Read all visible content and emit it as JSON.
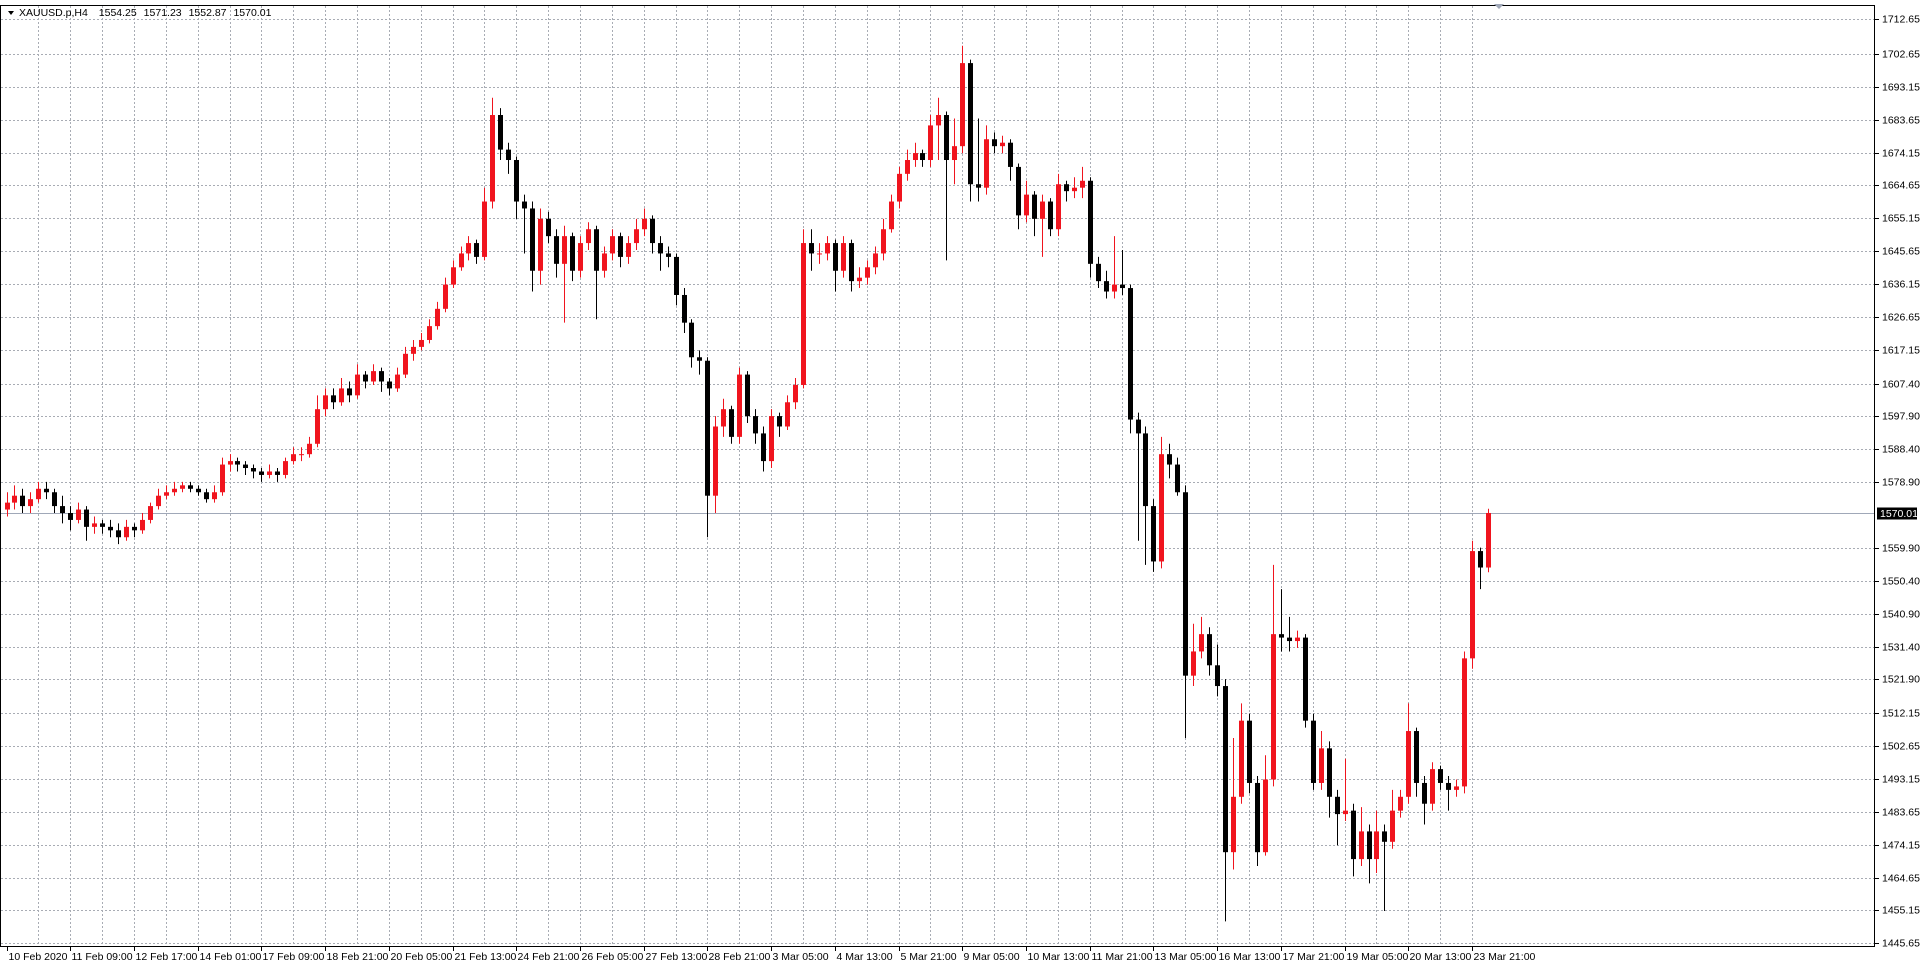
{
  "chart_data": {
    "type": "candlestick",
    "title": "XAUUSD.p,H4",
    "up_color": "#f0141e",
    "down_color": "#000000",
    "grid": true,
    "price_line": 1570.01,
    "ylim": [
      1444.6,
      1716.5
    ],
    "yticks": [
      1712.65,
      1702.65,
      1693.15,
      1683.65,
      1674.15,
      1664.65,
      1655.15,
      1645.65,
      1636.15,
      1626.65,
      1617.15,
      {
        "value": 1607.4,
        "label": "1607.40"
      },
      {
        "value": 1597.9,
        "label": "1597.90"
      },
      {
        "value": 1588.4,
        "label": "1588.40"
      },
      {
        "value": 1578.9,
        "label": "1578.90"
      },
      {
        "value": 1559.9,
        "label": "1559.90"
      },
      {
        "value": 1550.4,
        "label": "1550.40"
      },
      {
        "value": 1540.9,
        "label": "1540.90"
      },
      {
        "value": 1531.4,
        "label": "1531.40"
      },
      {
        "value": 1521.9,
        "label": "1521.90"
      },
      1512.15,
      1502.65,
      1493.15,
      1483.65,
      1474.15,
      1464.65,
      1455.15,
      1445.65
    ],
    "categories": [
      "10 Feb 2020",
      null,
      null,
      null,
      null,
      null,
      null,
      null,
      "11 Feb 09:00",
      null,
      null,
      null,
      null,
      null,
      null,
      null,
      "12 Feb 17:00",
      null,
      null,
      null,
      null,
      null,
      null,
      null,
      "14 Feb 01:00",
      null,
      null,
      null,
      null,
      null,
      null,
      null,
      "17 Feb 09:00",
      null,
      null,
      null,
      null,
      null,
      null,
      null,
      "18 Feb 21:00",
      null,
      null,
      null,
      null,
      null,
      null,
      null,
      "20 Feb 05:00",
      null,
      null,
      null,
      null,
      null,
      null,
      null,
      "21 Feb 13:00",
      null,
      null,
      null,
      null,
      null,
      null,
      null,
      "24 Feb 21:00",
      null,
      null,
      null,
      null,
      null,
      null,
      null,
      "26 Feb 05:00",
      null,
      null,
      null,
      null,
      null,
      null,
      null,
      "27 Feb 13:00",
      null,
      null,
      null,
      null,
      null,
      null,
      null,
      "28 Feb 21:00",
      null,
      null,
      null,
      null,
      null,
      null,
      null,
      "3 Mar 05:00",
      null,
      null,
      null,
      null,
      null,
      null,
      null,
      "4 Mar 13:00",
      null,
      null,
      null,
      null,
      null,
      null,
      null,
      "5 Mar 21:00",
      null,
      null,
      null,
      null,
      null,
      null,
      null,
      "9 Mar 05:00",
      null,
      null,
      null,
      null,
      null,
      null,
      null,
      "10 Mar 13:00",
      null,
      null,
      null,
      null,
      null,
      null,
      null,
      "11 Mar 21:00",
      null,
      null,
      null,
      null,
      null,
      null,
      null,
      "13 Mar 05:00",
      null,
      null,
      null,
      null,
      null,
      null,
      null,
      "16 Mar 13:00",
      null,
      null,
      null,
      null,
      null,
      null,
      null,
      "17 Mar 21:00",
      null,
      null,
      null,
      null,
      null,
      null,
      null,
      "19 Mar 05:00",
      null,
      null,
      null,
      null,
      null,
      null,
      null,
      "20 Mar 13:00",
      null,
      null,
      null,
      null,
      null,
      null,
      null,
      "23 Mar 21:00",
      null,
      null
    ],
    "open": [
      1571,
      1573,
      1575,
      1572,
      1574,
      1577,
      1576,
      1572,
      1570,
      1568,
      1571,
      1566,
      1567,
      1566,
      1565,
      1563,
      1566,
      1565,
      1568,
      1572,
      1575,
      1576,
      1577,
      1578,
      1577,
      1576,
      1574,
      1576,
      1584,
      1585,
      1584,
      1583,
      1582,
      1581,
      1582,
      1581,
      1585,
      1587,
      1587,
      1590,
      1600,
      1604,
      1602,
      1606,
      1604,
      1610,
      1608,
      1611,
      1608,
      1606,
      1610,
      1616,
      1618,
      1620,
      1624,
      1629,
      1636,
      1641,
      1645,
      1648,
      1644,
      1660,
      1685,
      1675,
      1672,
      1660,
      1658,
      1640,
      1655,
      1650,
      1642,
      1650,
      1640,
      1648,
      1652,
      1640,
      1645,
      1650,
      1644,
      1648,
      1652,
      1655,
      1648,
      1645,
      1644,
      1633,
      1625,
      1615,
      1614,
      1575,
      1595,
      1600,
      1592,
      1610,
      1598,
      1593,
      1585,
      1598,
      1595,
      1602,
      1607,
      1648,
      1645,
      1645,
      1648,
      1640,
      1648,
      1637,
      1638,
      1641,
      1645,
      1652,
      1660,
      1668,
      1672,
      1674,
      1672,
      1682,
      1685,
      1672,
      1676,
      1700,
      1665,
      1664,
      1678,
      1676,
      1677,
      1670,
      1656,
      1662,
      1655,
      1660,
      1652,
      1665,
      1663,
      1664,
      1666,
      1642,
      1637,
      1634,
      1636,
      1635,
      1597,
      1593,
      1572,
      1556,
      1587,
      1584,
      1576,
      1523,
      1530,
      1535,
      1526,
      1520,
      1472,
      1488,
      1510,
      1492,
      1472,
      1493,
      1535,
      1534,
      1533,
      1534,
      1510,
      1492,
      1502,
      1488,
      1483,
      1484,
      1470,
      1478,
      1470,
      1478,
      1475,
      1484,
      1488,
      1507,
      1492,
      1486,
      1496,
      1492,
      1490,
      1491,
      1528,
      1559,
      1554.25
    ],
    "high": [
      1576,
      1578,
      1577,
      1576,
      1579,
      1579,
      1577,
      1575,
      1572,
      1573,
      1572,
      1569,
      1568,
      1568,
      1567,
      1568,
      1567,
      1570,
      1573,
      1577,
      1578,
      1579,
      1579,
      1579,
      1578,
      1577,
      1578,
      1586,
      1587,
      1586,
      1585,
      1584,
      1583,
      1584,
      1583,
      1586,
      1589,
      1589,
      1592,
      1604,
      1606,
      1606,
      1609,
      1608,
      1613,
      1611,
      1613,
      1612,
      1609,
      1612,
      1618,
      1620,
      1622,
      1626,
      1631,
      1638,
      1643,
      1647,
      1650,
      1649,
      1664,
      1690,
      1687,
      1677,
      1673,
      1662,
      1660,
      1658,
      1657,
      1652,
      1653,
      1651,
      1650,
      1654,
      1653,
      1647,
      1652,
      1651,
      1650,
      1655,
      1658,
      1656,
      1650,
      1647,
      1645,
      1635,
      1626,
      1617,
      1615,
      1598,
      1603,
      1601,
      1612,
      1611,
      1600,
      1595,
      1600,
      1599,
      1604,
      1609,
      1652,
      1652,
      1648,
      1650,
      1649,
      1650,
      1649,
      1641,
      1643,
      1647,
      1655,
      1662,
      1670,
      1675,
      1677,
      1675,
      1685,
      1690,
      1686,
      1684,
      1705,
      1701,
      1684,
      1682,
      1680,
      1679,
      1678,
      1671,
      1666,
      1663,
      1662,
      1661,
      1668,
      1666,
      1667,
      1670,
      1667,
      1644,
      1640,
      1650,
      1646,
      1636,
      1599,
      1595,
      1574,
      1592,
      1590,
      1586,
      1578,
      1538,
      1540,
      1537,
      1532,
      1522,
      1505,
      1515,
      1512,
      1494,
      1500,
      1555,
      1548,
      1540,
      1536,
      1535,
      1512,
      1507,
      1504,
      1490,
      1499,
      1486,
      1485,
      1480,
      1484,
      1480,
      1490,
      1490,
      1515,
      1508,
      1494,
      1498,
      1497,
      1494,
      1493,
      1530,
      1562,
      1560,
      1571.23
    ],
    "low": [
      1569,
      1571,
      1570,
      1570,
      1573,
      1574,
      1570,
      1567,
      1565,
      1567,
      1562,
      1564,
      1564,
      1563,
      1561,
      1562,
      1563,
      1564,
      1567,
      1571,
      1574,
      1575,
      1576,
      1576,
      1575,
      1573,
      1573,
      1575,
      1582,
      1582,
      1581,
      1580,
      1579,
      1580,
      1579,
      1580,
      1584,
      1585,
      1586,
      1589,
      1598,
      1600,
      1601,
      1602,
      1603,
      1606,
      1607,
      1605,
      1604,
      1605,
      1609,
      1614,
      1617,
      1619,
      1623,
      1628,
      1635,
      1640,
      1643,
      1642,
      1643,
      1658,
      1672,
      1668,
      1655,
      1645,
      1634,
      1636,
      1648,
      1638,
      1625,
      1637,
      1638,
      1646,
      1626,
      1638,
      1643,
      1641,
      1642,
      1646,
      1650,
      1645,
      1640,
      1641,
      1630,
      1622,
      1612,
      1610,
      1563,
      1570,
      1592,
      1590,
      1590,
      1596,
      1590,
      1582,
      1583,
      1592,
      1594,
      1600,
      1606,
      1640,
      1642,
      1643,
      1634,
      1638,
      1634,
      1635,
      1636,
      1639,
      1643,
      1651,
      1658,
      1666,
      1670,
      1670,
      1670,
      1672,
      1643,
      1665,
      1674,
      1660,
      1660,
      1662,
      1674,
      1674,
      1666,
      1652,
      1654,
      1650,
      1644,
      1650,
      1650,
      1660,
      1661,
      1661,
      1638,
      1635,
      1632,
      1632,
      1633,
      1593,
      1562,
      1555,
      1553,
      1554,
      1580,
      1575,
      1505,
      1520,
      1528,
      1523,
      1517,
      1452,
      1467,
      1486,
      1489,
      1468,
      1471,
      1491,
      1530,
      1530,
      1531,
      1508,
      1490,
      1490,
      1482,
      1474,
      1481,
      1465,
      1468,
      1463,
      1466,
      1455,
      1473,
      1482,
      1486,
      1488,
      1480,
      1484,
      1490,
      1484,
      1488,
      1489,
      1525,
      1548,
      1552.87
    ],
    "close": [
      1573,
      1575,
      1572,
      1574,
      1577,
      1576,
      1572,
      1570,
      1568,
      1571,
      1566,
      1567,
      1566,
      1565,
      1563,
      1566,
      1565,
      1568,
      1572,
      1575,
      1576,
      1577,
      1578,
      1577,
      1576,
      1574,
      1576,
      1584,
      1585,
      1584,
      1583,
      1582,
      1581,
      1582,
      1581,
      1585,
      1587,
      1587,
      1590,
      1600,
      1604,
      1602,
      1606,
      1604,
      1610,
      1608,
      1611,
      1608,
      1606,
      1610,
      1616,
      1618,
      1620,
      1624,
      1629,
      1636,
      1641,
      1645,
      1648,
      1644,
      1660,
      1685,
      1675,
      1672,
      1660,
      1658,
      1640,
      1655,
      1650,
      1642,
      1650,
      1640,
      1648,
      1652,
      1640,
      1645,
      1650,
      1644,
      1648,
      1652,
      1655,
      1648,
      1645,
      1644,
      1633,
      1625,
      1615,
      1614,
      1575,
      1595,
      1600,
      1592,
      1610,
      1598,
      1593,
      1585,
      1598,
      1595,
      1602,
      1607,
      1648,
      1645,
      1645,
      1648,
      1640,
      1648,
      1637,
      1638,
      1641,
      1645,
      1652,
      1660,
      1668,
      1672,
      1674,
      1672,
      1682,
      1685,
      1672,
      1676,
      1700,
      1665,
      1664,
      1678,
      1676,
      1677,
      1670,
      1656,
      1662,
      1655,
      1660,
      1652,
      1665,
      1663,
      1664,
      1666,
      1642,
      1637,
      1634,
      1636,
      1635,
      1597,
      1593,
      1572,
      1556,
      1587,
      1584,
      1576,
      1523,
      1530,
      1535,
      1526,
      1520,
      1472,
      1488,
      1510,
      1492,
      1472,
      1493,
      1535,
      1534,
      1533,
      1534,
      1510,
      1492,
      1502,
      1488,
      1483,
      1484,
      1470,
      1478,
      1470,
      1478,
      1475,
      1484,
      1488,
      1507,
      1492,
      1486,
      1496,
      1492,
      1490,
      1491,
      1528,
      1559,
      1554.25,
      1570.01
    ]
  }
}
